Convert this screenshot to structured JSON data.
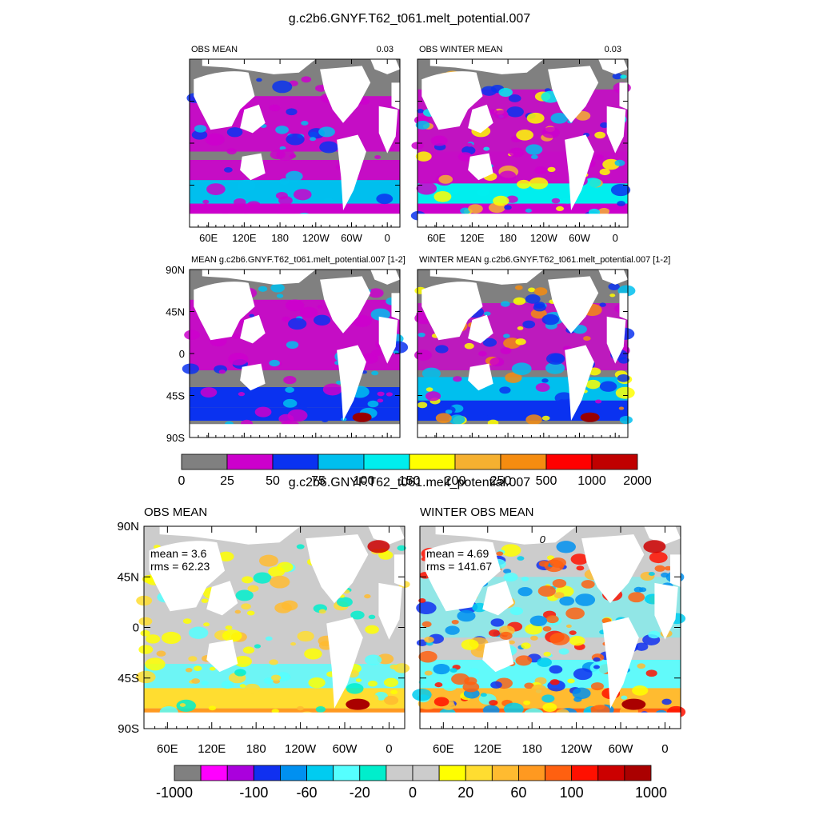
{
  "figure1": {
    "title": "g.c2b6.GNYF.T62_t061.melt_potential.007",
    "panels": [
      {
        "id": "p1",
        "label_left": "OBS MEAN",
        "label_right": "0.03"
      },
      {
        "id": "p2",
        "label_left": "OBS WINTER MEAN",
        "label_right": "0.03"
      },
      {
        "id": "p3",
        "label_left": "MEAN g.c2b6.GNYF.T62_t061.melt_potential.007 [1-2]",
        "label_right": ""
      },
      {
        "id": "p4",
        "label_left": "WINTER MEAN g.c2b6.GNYF.T62_t061.melt_potential.007 [1-2]",
        "label_right": ""
      }
    ],
    "colorbar": {
      "colors": [
        "#808080",
        "#cc00cc",
        "#0a32f0",
        "#00bfee",
        "#00eeee",
        "#ffff00",
        "#f5b030",
        "#f58c10",
        "#ff0000",
        "#c00000"
      ],
      "labels": [
        "0",
        "25",
        "50",
        "75",
        "100",
        "150",
        "200",
        "250",
        "500",
        "1000",
        "2000"
      ]
    }
  },
  "figure2": {
    "title": "g.c2b6.GNYF.T62_t061.melt_potential.007",
    "panels": [
      {
        "id": "p5",
        "label_left": "OBS MEAN",
        "mean": "mean = 3.6",
        "rms": "rms = 62.23",
        "contour_label": ""
      },
      {
        "id": "p6",
        "label_left": "WINTER OBS MEAN",
        "mean": "mean = 4.69",
        "rms": "rms = 141.67",
        "contour_label": "0"
      }
    ],
    "colorbar": {
      "colors": [
        "#808080",
        "#ff00ff",
        "#aa00dd",
        "#1030f0",
        "#0090f0",
        "#00ccf0",
        "#55ffff",
        "#00eecc",
        "#cccccc",
        "#cccccc",
        "#ffff00",
        "#ffdd30",
        "#ffbb30",
        "#ff9920",
        "#ff6010",
        "#ff1000",
        "#cc0000",
        "#aa0000"
      ],
      "labels": [
        "-1000",
        "-100",
        "-60",
        "-20",
        "0",
        "20",
        "60",
        "100",
        "1000"
      ]
    }
  },
  "chart_data": [
    {
      "type": "heatmap",
      "title": "OBS MEAN",
      "subtitle": "0.03",
      "xlabel": "",
      "ylabel": "",
      "x_tick_labels": [
        "60E",
        "120E",
        "180",
        "120W",
        "60W",
        "0"
      ],
      "y_tick_labels": [],
      "colorbar_levels": [
        0,
        25,
        50,
        75,
        100,
        150,
        200,
        250,
        500,
        1000,
        2000
      ]
    },
    {
      "type": "heatmap",
      "title": "OBS WINTER MEAN",
      "subtitle": "0.03",
      "x_tick_labels": [
        "60E",
        "120E",
        "180",
        "120W",
        "60W",
        "0"
      ],
      "y_tick_labels": [],
      "colorbar_levels": [
        0,
        25,
        50,
        75,
        100,
        150,
        200,
        250,
        500,
        1000,
        2000
      ]
    },
    {
      "type": "heatmap",
      "title": "MEAN g.c2b6.GNYF.T62_t061.melt_potential.007 [1-2]",
      "x_tick_labels": [],
      "y_tick_labels": [
        "90N",
        "45N",
        "0",
        "45S",
        "90S"
      ],
      "colorbar_levels": [
        0,
        25,
        50,
        75,
        100,
        150,
        200,
        250,
        500,
        1000,
        2000
      ]
    },
    {
      "type": "heatmap",
      "title": "WINTER MEAN g.c2b6.GNYF.T62_t061.melt_potential.007 [1-2]",
      "x_tick_labels": [],
      "y_tick_labels": [],
      "colorbar_levels": [
        0,
        25,
        50,
        75,
        100,
        150,
        200,
        250,
        500,
        1000,
        2000
      ]
    },
    {
      "type": "heatmap",
      "title": "OBS MEAN",
      "x_tick_labels": [
        "60E",
        "120E",
        "180",
        "120W",
        "60W",
        "0"
      ],
      "y_tick_labels": [
        "90N",
        "45N",
        "0",
        "45S",
        "90S"
      ],
      "annotations": [
        "mean = 3.6",
        "rms = 62.23"
      ],
      "colorbar_levels": [
        -1000,
        -100,
        -60,
        -20,
        0,
        20,
        60,
        100,
        1000
      ]
    },
    {
      "type": "heatmap",
      "title": "WINTER OBS MEAN",
      "x_tick_labels": [
        "60E",
        "120E",
        "180",
        "120W",
        "60W",
        "0"
      ],
      "y_tick_labels": [],
      "annotations": [
        "mean = 4.69",
        "rms = 141.67",
        "0"
      ],
      "colorbar_levels": [
        -1000,
        -100,
        -60,
        -20,
        0,
        20,
        60,
        100,
        1000
      ]
    }
  ]
}
